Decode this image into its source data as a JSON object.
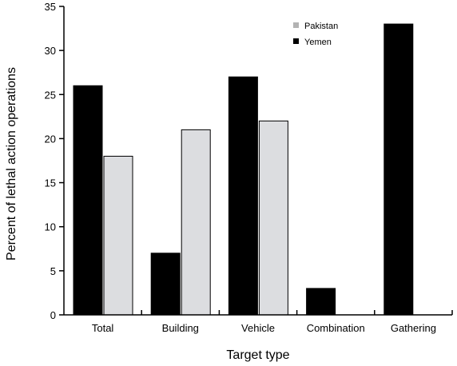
{
  "chart_data": {
    "type": "bar",
    "categories": [
      "Total",
      "Building",
      "Vehicle",
      "Combination",
      "Gathering"
    ],
    "series": [
      {
        "name": "Yemen",
        "color": "#000000",
        "values": [
          26,
          7,
          27,
          3,
          33
        ]
      },
      {
        "name": "Pakistan",
        "color": "#dcdde0",
        "values": [
          18,
          21,
          22,
          0,
          0
        ]
      }
    ],
    "legend_swatch_colors": {
      "Pakistan": "#b3b3b3",
      "Yemen": "#000000"
    },
    "legend_order": [
      "Pakistan",
      "Yemen"
    ],
    "xlabel": "Target type",
    "ylabel": "Percent of lethal action operations",
    "ylim": [
      0,
      35
    ],
    "yticks": [
      0,
      5,
      10,
      15,
      20,
      25,
      30,
      35
    ],
    "grid": false,
    "legend_position": "top-right"
  }
}
